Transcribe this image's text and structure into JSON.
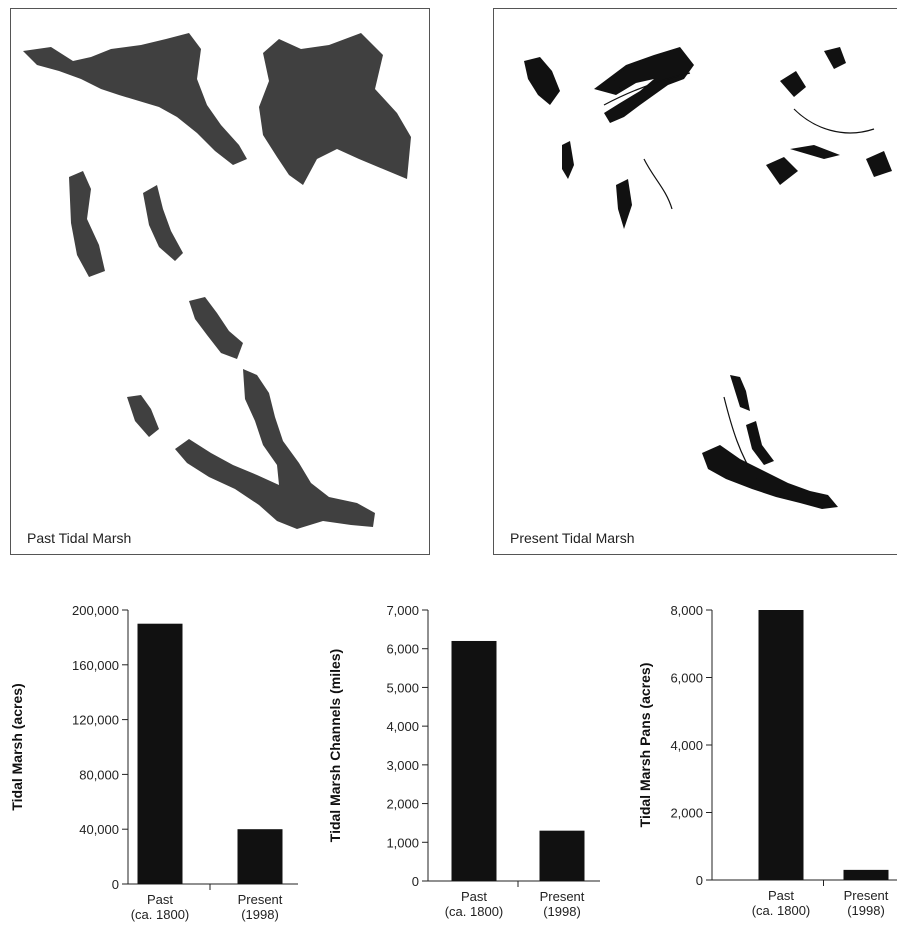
{
  "maps": {
    "past": {
      "caption": "Past Tidal Marsh",
      "fill_color": "#404040"
    },
    "present": {
      "caption": "Present Tidal Marsh",
      "fill_color": "#111111"
    }
  },
  "chart_data": [
    {
      "type": "bar",
      "ylabel": "Tidal Marsh (acres)",
      "categories": [
        "Past\n(ca. 1800)",
        "Present\n(1998)"
      ],
      "values": [
        190000,
        40000
      ],
      "ylim": [
        0,
        200000
      ],
      "yticks": [
        0,
        40000,
        80000,
        120000,
        160000,
        200000
      ],
      "ytick_labels": [
        "0",
        "40,000",
        "80,000",
        "120,000",
        "160,000",
        "200,000"
      ],
      "bar_color": "#111111",
      "grid": false
    },
    {
      "type": "bar",
      "ylabel": "Tidal Marsh Channels (miles)",
      "categories": [
        "Past\n(ca. 1800)",
        "Present\n(1998)"
      ],
      "values": [
        6200,
        1300
      ],
      "ylim": [
        0,
        7000
      ],
      "yticks": [
        0,
        1000,
        2000,
        3000,
        4000,
        5000,
        6000,
        7000
      ],
      "ytick_labels": [
        "0",
        "1,000",
        "2,000",
        "3,000",
        "4,000",
        "5,000",
        "6,000",
        "7,000"
      ],
      "bar_color": "#111111",
      "grid": false
    },
    {
      "type": "bar",
      "ylabel": "Tidal Marsh Pans (acres)",
      "categories": [
        "Past\n(ca. 1800)",
        "Present\n(1998)"
      ],
      "values": [
        8000,
        300
      ],
      "ylim": [
        0,
        8000
      ],
      "yticks": [
        0,
        2000,
        4000,
        6000,
        8000
      ],
      "ytick_labels": [
        "0",
        "2,000",
        "4,000",
        "6,000",
        "8,000"
      ],
      "bar_color": "#111111",
      "grid": false
    }
  ]
}
